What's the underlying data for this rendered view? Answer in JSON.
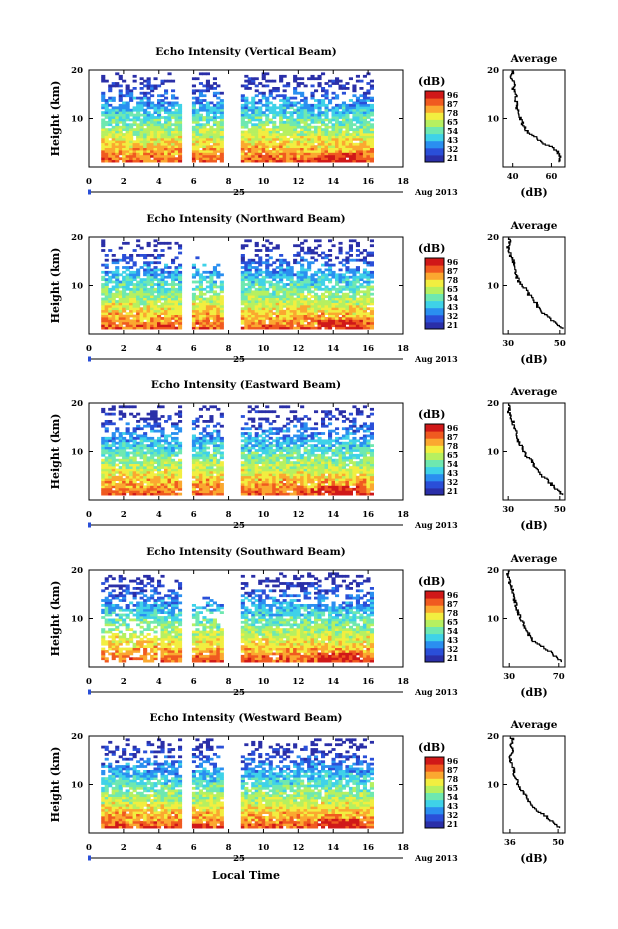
{
  "figure": {
    "xlabel": "Local Time",
    "ylabel": "Height (km)",
    "date_label": "Aug 2013",
    "day_label": "25",
    "colorbar_unit": "(dB)",
    "colorbar_ticks": [
      "96",
      "87",
      "78",
      "65",
      "54",
      "43",
      "32",
      "21"
    ],
    "avg_title": "Average",
    "avg_xlabel": "(dB)",
    "palette": [
      "#2a2fa8",
      "#2a4fd8",
      "#2a8ff0",
      "#3fd2e8",
      "#6fe8b0",
      "#b6f060",
      "#f2ee40",
      "#fba830",
      "#f05a20",
      "#d01818"
    ]
  },
  "chart_data": [
    {
      "type": "heatmap",
      "title": "Echo Intensity (Vertical Beam)",
      "xlabel": "Local Time",
      "ylabel": "Height (km)",
      "xlim": [
        0,
        18
      ],
      "ylim": [
        0,
        20
      ],
      "xticks": [
        "0",
        "2",
        "4",
        "6",
        "8",
        "10",
        "12",
        "14",
        "16",
        "18"
      ],
      "yticks": [
        "20",
        "10"
      ],
      "data_gaps_hours": [
        [
          5.2,
          5.9
        ],
        [
          7.6,
          8.7
        ]
      ],
      "data_end_hour": 16.1,
      "colorbar": {
        "label": "(dB)",
        "range": [
          21,
          96
        ],
        "ticks": [
          "96",
          "87",
          "78",
          "65",
          "54",
          "43",
          "32",
          "21"
        ]
      },
      "profile": {
        "title": "Average",
        "xlabel": "(dB)",
        "xticks": [
          "40",
          "60"
        ],
        "xlim": [
          35,
          67
        ],
        "heights_km": [
          1,
          2,
          3,
          4,
          5,
          6,
          7,
          8,
          9,
          10,
          11,
          12,
          13,
          14,
          15,
          16,
          17,
          18,
          19,
          20
        ],
        "values_db": [
          64,
          65,
          63,
          60,
          55,
          52,
          48,
          46,
          45,
          44,
          43,
          42,
          42,
          41,
          42,
          40,
          41,
          39,
          40,
          41
        ]
      }
    },
    {
      "type": "heatmap",
      "title": "Echo Intensity (Northward Beam)",
      "xlabel": "Local Time",
      "ylabel": "Height (km)",
      "xlim": [
        0,
        18
      ],
      "ylim": [
        0,
        20
      ],
      "xticks": [
        "0",
        "2",
        "4",
        "6",
        "8",
        "10",
        "12",
        "14",
        "16",
        "18"
      ],
      "yticks": [
        "20",
        "10"
      ],
      "data_gaps_hours": [
        [
          5.2,
          5.9
        ],
        [
          7.6,
          8.7
        ]
      ],
      "data_end_hour": 16.1,
      "colorbar": {
        "label": "(dB)",
        "range": [
          21,
          96
        ],
        "ticks": [
          "96",
          "87",
          "78",
          "65",
          "54",
          "43",
          "32",
          "21"
        ]
      },
      "profile": {
        "title": "Average",
        "xlabel": "(dB)",
        "xticks": [
          "30",
          "50"
        ],
        "xlim": [
          28,
          52
        ],
        "heights_km": [
          1,
          2,
          3,
          4,
          5,
          6,
          7,
          8,
          9,
          10,
          11,
          12,
          13,
          14,
          15,
          16,
          17,
          18,
          19,
          20
        ],
        "values_db": [
          51,
          49,
          46,
          44,
          42,
          41,
          40,
          38,
          37,
          35,
          34,
          33,
          33,
          32,
          32,
          31,
          30,
          30,
          31,
          30
        ]
      }
    },
    {
      "type": "heatmap",
      "title": "Echo Intensity (Eastward Beam)",
      "xlabel": "Local Time",
      "ylabel": "Height (km)",
      "xlim": [
        0,
        18
      ],
      "ylim": [
        0,
        20
      ],
      "xticks": [
        "0",
        "2",
        "4",
        "6",
        "8",
        "10",
        "12",
        "14",
        "16",
        "18"
      ],
      "yticks": [
        "20",
        "10"
      ],
      "data_gaps_hours": [
        [
          5.2,
          5.9
        ],
        [
          7.6,
          8.7
        ]
      ],
      "data_end_hour": 16.1,
      "colorbar": {
        "label": "(dB)",
        "range": [
          21,
          96
        ],
        "ticks": [
          "96",
          "87",
          "78",
          "65",
          "54",
          "43",
          "32",
          "21"
        ]
      },
      "profile": {
        "title": "Average",
        "xlabel": "(dB)",
        "xticks": [
          "30",
          "50"
        ],
        "xlim": [
          28,
          52
        ],
        "heights_km": [
          1,
          2,
          3,
          4,
          5,
          6,
          7,
          8,
          9,
          10,
          11,
          12,
          13,
          14,
          15,
          16,
          17,
          18,
          19,
          20
        ],
        "values_db": [
          51,
          49,
          47,
          45,
          43,
          42,
          40,
          39,
          37,
          36,
          35,
          34,
          33,
          33,
          32,
          32,
          31,
          30,
          31,
          30
        ]
      }
    },
    {
      "type": "heatmap",
      "title": "Echo Intensity (Southward Beam)",
      "xlabel": "Local Time",
      "ylabel": "Height (km)",
      "xlim": [
        0,
        18
      ],
      "ylim": [
        0,
        20
      ],
      "xticks": [
        "0",
        "2",
        "4",
        "6",
        "8",
        "10",
        "12",
        "14",
        "16",
        "18"
      ],
      "yticks": [
        "20",
        "10"
      ],
      "data_gaps_hours": [
        [
          5.2,
          5.9
        ],
        [
          7.6,
          8.7
        ]
      ],
      "data_end_hour": 16.1,
      "colorbar": {
        "label": "(dB)",
        "range": [
          21,
          96
        ],
        "ticks": [
          "96",
          "87",
          "78",
          "65",
          "54",
          "43",
          "32",
          "21"
        ]
      },
      "profile": {
        "title": "Average",
        "xlabel": "(dB)",
        "xticks": [
          "30",
          "70"
        ],
        "xlim": [
          25,
          75
        ],
        "heights_km": [
          1,
          2,
          3,
          4,
          5,
          6,
          7,
          8,
          9,
          10,
          11,
          12,
          13,
          14,
          15,
          16,
          17,
          18,
          19,
          20
        ],
        "values_db": [
          72,
          68,
          63,
          57,
          50,
          47,
          45,
          43,
          41,
          39,
          37,
          36,
          35,
          34,
          33,
          32,
          31,
          30,
          29,
          30
        ]
      }
    },
    {
      "type": "heatmap",
      "title": "Echo Intensity (Westward Beam)",
      "xlabel": "Local Time",
      "ylabel": "Height (km)",
      "xlim": [
        0,
        18
      ],
      "ylim": [
        0,
        20
      ],
      "xticks": [
        "0",
        "2",
        "4",
        "6",
        "8",
        "10",
        "12",
        "14",
        "16",
        "18"
      ],
      "yticks": [
        "20",
        "10"
      ],
      "data_gaps_hours": [
        [
          5.2,
          5.9
        ],
        [
          7.6,
          8.7
        ]
      ],
      "data_end_hour": 16.1,
      "colorbar": {
        "label": "(dB)",
        "range": [
          21,
          96
        ],
        "ticks": [
          "96",
          "87",
          "78",
          "65",
          "54",
          "43",
          "32",
          "21"
        ]
      },
      "profile": {
        "title": "Average",
        "xlabel": "(dB)",
        "xticks": [
          "36",
          "50"
        ],
        "xlim": [
          34,
          52
        ],
        "heights_km": [
          1,
          2,
          3,
          4,
          5,
          6,
          7,
          8,
          9,
          10,
          11,
          12,
          13,
          14,
          15,
          16,
          17,
          18,
          19,
          20
        ],
        "values_db": [
          50,
          49,
          47,
          45,
          43,
          42,
          41,
          40,
          39,
          38,
          38,
          37,
          37,
          37,
          36,
          36,
          37,
          36,
          37,
          36
        ]
      }
    }
  ]
}
